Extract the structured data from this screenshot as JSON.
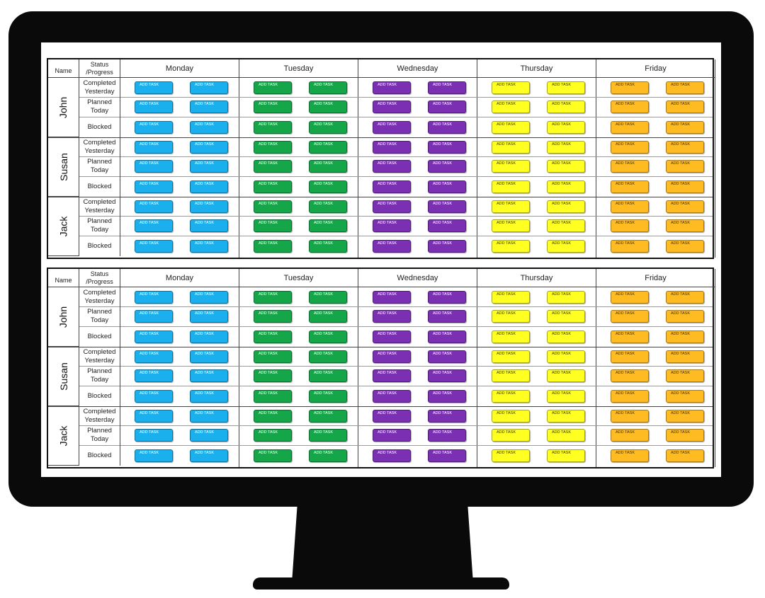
{
  "headers": {
    "name": "Name",
    "status": "Status /Progress",
    "days": [
      "Monday",
      "Tuesday",
      "Wednesday",
      "Thursday",
      "Friday"
    ]
  },
  "people": [
    "John",
    "Susan",
    "Jack"
  ],
  "statuses": [
    "Completed Yesterday",
    "Planned Today",
    "Blocked"
  ],
  "task_label": "ADD TASK",
  "day_colors": [
    "#1ab0ee",
    "#16a64a",
    "#7b2fb3",
    "#ffff22",
    "#ffbb22"
  ],
  "day_text_colors": [
    "#ffffff",
    "#ffffff",
    "#ffffff",
    "#333333",
    "#333333"
  ],
  "boards": 2
}
